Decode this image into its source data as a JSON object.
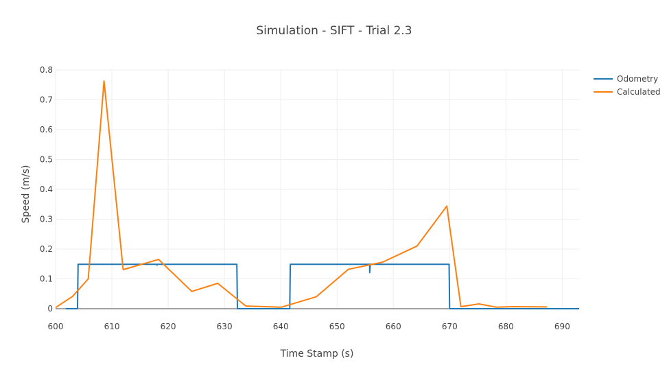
{
  "chart_data": {
    "type": "line",
    "title": "Simulation - SIFT - Trial 2.3",
    "xlabel": "Time Stamp (s)",
    "ylabel": "Speed (m/s)",
    "xlim": [
      600,
      693
    ],
    "ylim": [
      0,
      0.8
    ],
    "x_ticks": [
      600,
      610,
      620,
      630,
      640,
      650,
      660,
      670,
      680,
      690
    ],
    "y_ticks": [
      0,
      0.1,
      0.2,
      0.3,
      0.4,
      0.5,
      0.6,
      0.7,
      0.8
    ],
    "x_tick_labels": [
      "600",
      "610",
      "620",
      "630",
      "640",
      "650",
      "660",
      "670",
      "680",
      "690"
    ],
    "y_tick_labels": [
      "0",
      "0.1",
      "0.2",
      "0.3",
      "0.4",
      "0.5",
      "0.6",
      "0.7",
      "0.8"
    ],
    "grid": true,
    "legend_position": "top-right",
    "series": [
      {
        "name": "Odometry",
        "color": "#1f77b4",
        "x": [
          601.8,
          603.8,
          603.9,
          604.0,
          604.2,
          618.0,
          618.0,
          618.1,
          618.2,
          632.2,
          632.3,
          632.4,
          641.6,
          641.7,
          641.8,
          655.8,
          655.8,
          655.9,
          656.0,
          669.9,
          670.0,
          670.1,
          693.0
        ],
        "y": [
          0.0,
          0.0,
          0.0,
          0.149,
          0.149,
          0.149,
          0.146,
          0.149,
          0.149,
          0.149,
          0.0,
          0.0,
          0.0,
          0.149,
          0.149,
          0.149,
          0.121,
          0.149,
          0.149,
          0.149,
          0.0,
          0.0,
          0.0
        ]
      },
      {
        "name": "Calculated",
        "color": "#ff7f0e",
        "x": [
          600.0,
          603.0,
          605.8,
          608.6,
          612.0,
          618.3,
          624.2,
          628.8,
          633.8,
          640.1,
          646.3,
          652.0,
          658.1,
          664.2,
          669.5,
          672.0,
          675.2,
          678.3,
          681.3,
          687.3
        ],
        "y": [
          0.004,
          0.041,
          0.1,
          0.763,
          0.131,
          0.165,
          0.058,
          0.085,
          0.009,
          0.005,
          0.04,
          0.132,
          0.156,
          0.21,
          0.344,
          0.007,
          0.016,
          0.005,
          0.007,
          0.006
        ]
      }
    ]
  }
}
